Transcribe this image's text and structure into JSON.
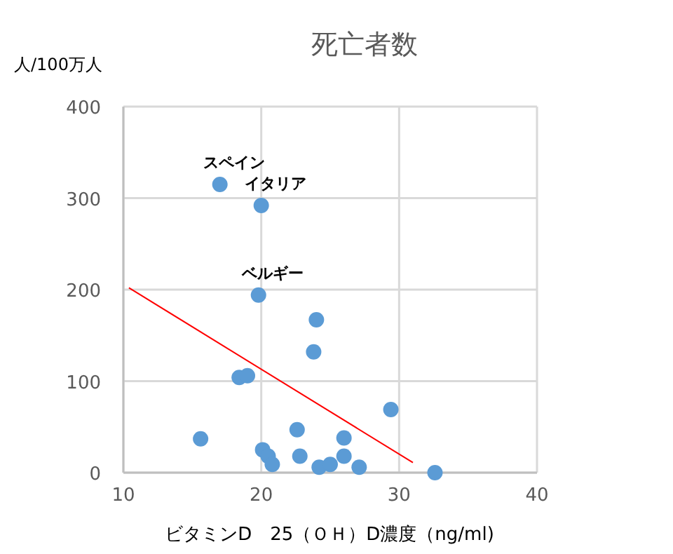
{
  "chart_data": {
    "type": "scatter",
    "title": "死亡者数",
    "xlabel": "ビタミンD　25（ＯＨ）D濃度（ng/ml)",
    "ylabel": "人/100万人",
    "xlim": [
      10,
      40
    ],
    "ylim": [
      0,
      400
    ],
    "xticks": [
      10,
      20,
      30,
      40
    ],
    "yticks": [
      0,
      100,
      200,
      300,
      400
    ],
    "grid": true,
    "series": [
      {
        "marker": "circle",
        "color": "#5b9bd5",
        "x": [
          17.0,
          20.0,
          19.8,
          24.0,
          23.8,
          18.4,
          19.0,
          29.4,
          22.6,
          15.6,
          26.0,
          20.1,
          20.5,
          20.8,
          22.8,
          26.0,
          24.2,
          25.0,
          27.1,
          32.6
        ],
        "values": [
          315,
          292,
          194,
          167,
          132,
          104,
          106,
          69,
          47,
          37,
          38,
          25,
          18,
          9,
          18,
          18,
          6,
          9,
          6,
          0
        ]
      },
      {
        "type": "line",
        "color": "#ff0000",
        "x": [
          10.4,
          31.0
        ],
        "values": [
          202,
          11
        ]
      }
    ],
    "annotations": [
      {
        "text": "スペイン",
        "x": 17.0,
        "y": 315
      },
      {
        "text": "イタリア",
        "x": 20.0,
        "y": 292
      },
      {
        "text": "ベルギー",
        "x": 19.8,
        "y": 194
      }
    ]
  }
}
